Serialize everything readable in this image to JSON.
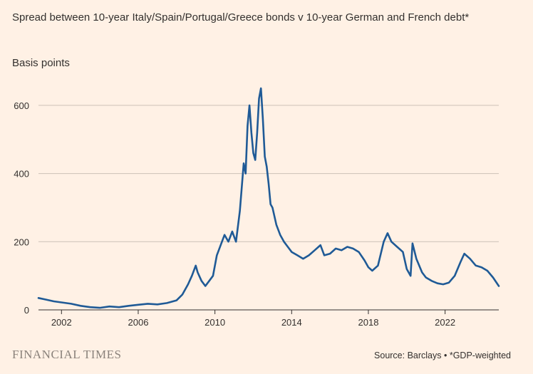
{
  "title": "Spread between 10-year Italy/Spain/Portugal/Greece bonds v 10-year German and French debt*",
  "ylabel": "Basis points",
  "brand": "FINANCIAL TIMES",
  "source": "Source: Barclays • *GDP-weighted",
  "colors": {
    "line": "#1f5a96",
    "grid": "#ccc1b7",
    "axis": "#33302e",
    "background": "#fff1e5"
  },
  "chart_data": {
    "type": "line",
    "title": "Spread between 10-year Italy/Spain/Portugal/Greece bonds v 10-year German and French debt*",
    "ylabel": "Basis points",
    "xlabel": "",
    "xlim": [
      2000.8,
      2024.8
    ],
    "ylim": [
      0,
      650
    ],
    "yticks": [
      0,
      200,
      400,
      600
    ],
    "ytick_labels": [
      "0",
      "200",
      "400",
      "600"
    ],
    "xticks": [
      2002,
      2006,
      2010,
      2014,
      2018,
      2022
    ],
    "xtick_labels": [
      "2002",
      "2006",
      "2010",
      "2014",
      "2018",
      "2022"
    ],
    "grid": true,
    "series": [
      {
        "x": [
          2000.8,
          2001.2,
          2001.6,
          2002.0,
          2002.5,
          2003.0,
          2003.5,
          2004.0,
          2004.5,
          2005.0,
          2005.5,
          2006.0,
          2006.5,
          2007.0,
          2007.5,
          2008.0,
          2008.3,
          2008.6,
          2008.8,
          2009.0,
          2009.1,
          2009.3,
          2009.5,
          2009.7,
          2009.9,
          2010.1,
          2010.3,
          2010.5,
          2010.7,
          2010.9,
          2011.1,
          2011.3,
          2011.5,
          2011.6,
          2011.7,
          2011.8,
          2011.9,
          2012.0,
          2012.1,
          2012.2,
          2012.3,
          2012.4,
          2012.5,
          2012.6,
          2012.7,
          2012.8,
          2012.9,
          2013.0,
          2013.2,
          2013.4,
          2013.6,
          2013.8,
          2014.0,
          2014.3,
          2014.6,
          2014.9,
          2015.2,
          2015.5,
          2015.7,
          2016.0,
          2016.3,
          2016.6,
          2016.9,
          2017.2,
          2017.5,
          2017.8,
          2018.0,
          2018.2,
          2018.5,
          2018.8,
          2019.0,
          2019.2,
          2019.5,
          2019.8,
          2020.0,
          2020.2,
          2020.3,
          2020.5,
          2020.8,
          2021.0,
          2021.3,
          2021.6,
          2021.9,
          2022.2,
          2022.5,
          2022.8,
          2023.0,
          2023.3,
          2023.6,
          2023.9,
          2024.2,
          2024.5,
          2024.8
        ],
        "values": [
          35,
          30,
          25,
          22,
          18,
          12,
          8,
          6,
          10,
          8,
          12,
          15,
          18,
          16,
          20,
          28,
          45,
          75,
          100,
          130,
          110,
          85,
          70,
          85,
          100,
          160,
          190,
          220,
          200,
          230,
          200,
          290,
          430,
          400,
          540,
          600,
          520,
          460,
          440,
          520,
          620,
          650,
          560,
          450,
          420,
          370,
          310,
          300,
          250,
          220,
          200,
          185,
          170,
          160,
          150,
          160,
          175,
          190,
          160,
          165,
          180,
          175,
          185,
          180,
          170,
          145,
          125,
          115,
          130,
          200,
          225,
          200,
          185,
          170,
          120,
          100,
          195,
          150,
          110,
          95,
          85,
          78,
          75,
          80,
          100,
          140,
          165,
          150,
          130,
          125,
          115,
          95,
          70
        ]
      }
    ]
  }
}
